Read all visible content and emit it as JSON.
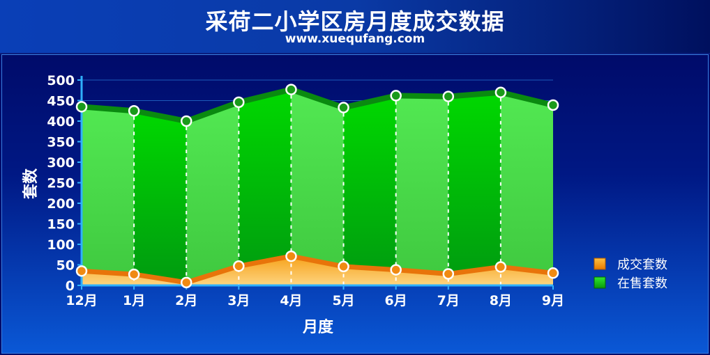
{
  "header": {
    "title": "采荷二小学区房月度成交数据",
    "subtitle": "www.xuequfang.com"
  },
  "colors": {
    "for_sale": "#16c21a",
    "for_sale_line": "#0a8a10",
    "sold": "#f7a21b",
    "sold_line": "#e8740a",
    "axis": "#2fb0ff"
  },
  "chart_data": {
    "type": "area",
    "title": "采荷二小学区房月度成交数据",
    "subtitle": "www.xuequfang.com",
    "xlabel": "月度",
    "ylabel": "套数",
    "categories": [
      "12月",
      "1月",
      "2月",
      "3月",
      "4月",
      "5月",
      "6月",
      "7月",
      "8月",
      "9月"
    ],
    "ylim": [
      0,
      500
    ],
    "yticks": [
      "0",
      "50",
      "100",
      "150",
      "200",
      "250",
      "300",
      "350",
      "400",
      "450",
      "500"
    ],
    "grid": "horizontal",
    "legend_position": "right",
    "series": [
      {
        "name": "成交套数",
        "values": [
          35,
          27,
          7,
          47,
          71,
          46,
          38,
          28,
          45,
          30
        ]
      },
      {
        "name": "在售套数",
        "values": [
          435,
          425,
          400,
          446,
          477,
          433,
          462,
          460,
          470,
          439
        ]
      }
    ]
  }
}
